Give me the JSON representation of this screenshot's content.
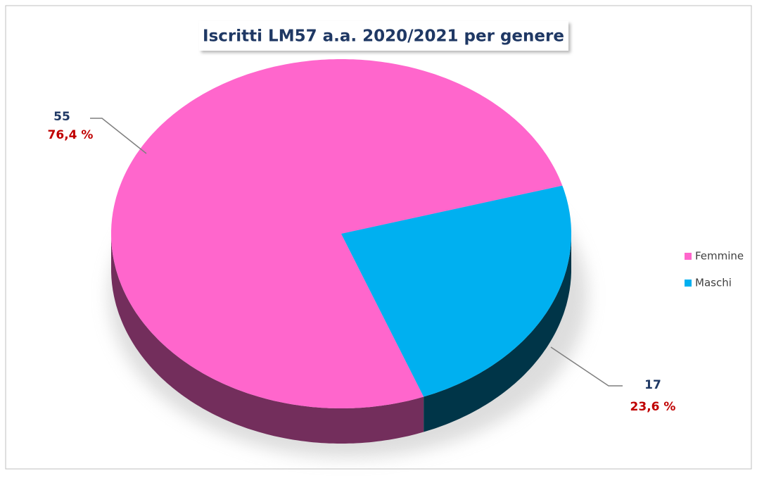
{
  "chart_data": {
    "type": "pie3d",
    "title": "Iscritti LM57 a.a. 2020/2021 per genere",
    "categories": [
      "Femmine",
      "Maschi"
    ],
    "values": [
      55,
      17
    ],
    "percentages": [
      76.4,
      23.6
    ],
    "percentage_labels": [
      "76,4 %",
      "23,6 %"
    ],
    "colors": [
      "#ff66cc",
      "#00b0f0"
    ],
    "legend": "right"
  }
}
